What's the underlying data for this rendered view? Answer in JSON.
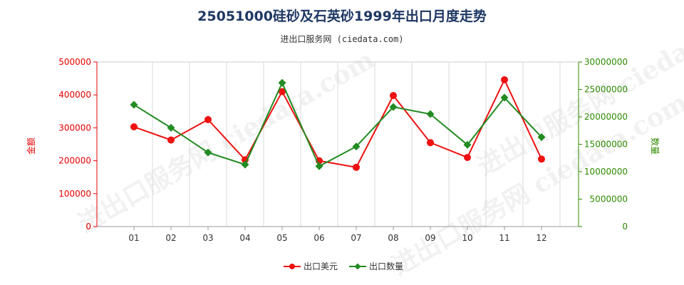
{
  "page": {
    "title": "25051000硅砂及石英砂1999年出口月度走势",
    "subtitle": "进出口服务网 (ciedata.com)",
    "watermark": "进出口服务网 ciedata.com"
  },
  "chart_data": {
    "type": "line",
    "title": "25051000硅砂及石英砂1999年出口月度走势",
    "categories": [
      "01",
      "02",
      "03",
      "04",
      "05",
      "06",
      "07",
      "08",
      "09",
      "10",
      "11",
      "12"
    ],
    "y_left": {
      "label": "金额",
      "ticks": [
        "0",
        "100000",
        "200000",
        "300000",
        "400000",
        "500000"
      ],
      "range": [
        0,
        500000
      ],
      "color": "#e60000"
    },
    "y_right": {
      "label": "数量",
      "ticks": [
        "0",
        "5000000",
        "10000000",
        "15000000",
        "20000000",
        "25000000",
        "30000000"
      ],
      "range": [
        0,
        30000000
      ],
      "color": "#2e8b00"
    },
    "series": [
      {
        "name": "出口美元",
        "axis": "left",
        "color": "#ee1111",
        "marker": "circle",
        "values": [
          303000,
          263000,
          325000,
          203000,
          410000,
          200000,
          180000,
          398000,
          255000,
          210000,
          446000,
          205000
        ]
      },
      {
        "name": "出口数量",
        "axis": "right",
        "color": "#228b22",
        "marker": "diamond",
        "values": [
          22200000,
          18000000,
          13500000,
          11300000,
          26200000,
          11000000,
          14600000,
          21800000,
          20500000,
          14900000,
          23500000,
          16300000
        ]
      }
    ],
    "grid": "vertical",
    "legend": "bottom-center"
  }
}
